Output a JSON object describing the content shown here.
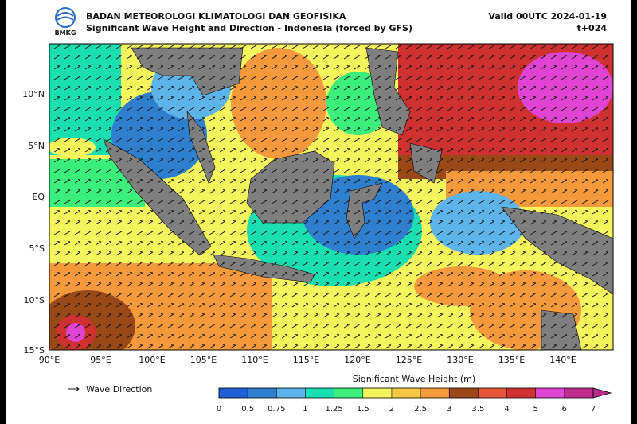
{
  "header": {
    "logo": "BMKG",
    "agency": "BADAN METEOROLOGI KLIMATOLOGI DAN GEOFISIKA",
    "subtitle": "Significant Wave Height and Direction - Indonesia (forced by GFS)",
    "valid": "Valid 00UTC 2024-01-19",
    "lead": "t+024"
  },
  "map": {
    "lat_labels": [
      "10°N",
      "5°N",
      "EQ",
      "5°S",
      "10°S",
      "15°S"
    ],
    "lon_labels": [
      "90°E",
      "95°E",
      "100°E",
      "105°E",
      "110°E",
      "115°E",
      "120°E",
      "125°E",
      "130°E",
      "135°E",
      "140°E"
    ]
  },
  "legend": {
    "arrow_label": "Wave Direction",
    "colorbar_title": "Significant Wave Height (m)",
    "ticks": [
      0,
      0.5,
      0.75,
      1,
      1.25,
      1.5,
      2,
      2.5,
      3,
      3.5,
      4,
      5,
      6,
      7
    ],
    "colors": [
      "#1f5fd8",
      "#2f7fcf",
      "#5cb4ea",
      "#1adfb0",
      "#3cef7c",
      "#f4f45c",
      "#f7c842",
      "#f49a3c",
      "#9a4818",
      "#e6563a",
      "#cf3030",
      "#e044d2",
      "#c02a8e"
    ]
  }
}
